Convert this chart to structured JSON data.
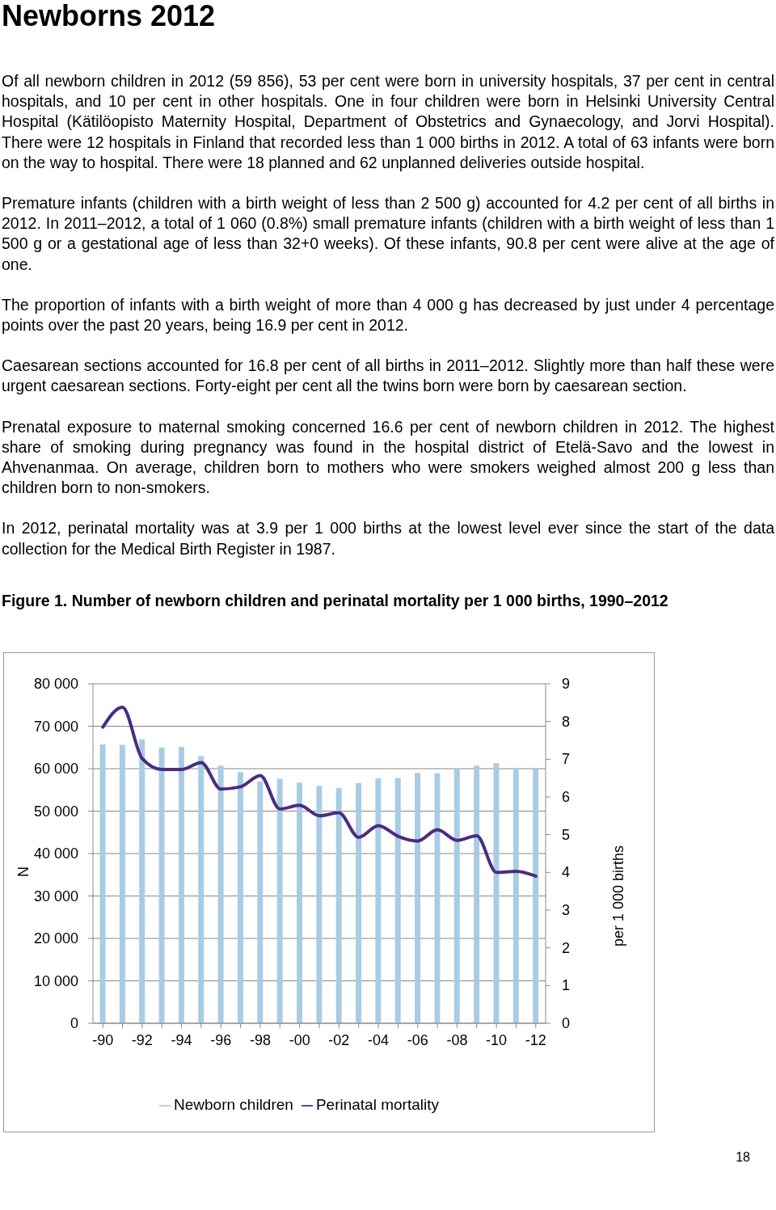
{
  "chart_data": {
    "type": "bar",
    "title": "Newborns 2012",
    "subtitle": "Figure 1. Number of newborn children and perinatal mortality per 1 000 births, 1990–2012",
    "annotations": [
      "Of all newborn children in 2012 (59 856), 53 per cent were born in university hospitals, 37 per cent in central hospitals, and 10 per cent in other hospitals. One in four children were born in Helsinki University Central Hospital (Kätilöopisto Maternity Hospital, Department of Obstetrics and Gynaecology, and Jorvi Hospital). There were 12 hospitals in Finland that recorded less than 1 000 births in 2012. A total of 63 infants were born on the way to hospital. There were 18 planned and 62 unplanned deliveries outside hospital.",
      "Premature infants (children with a birth weight of less than 2 500 g) accounted for 4.2 per cent of all births in 2012. In 2011–2012, a total of 1 060 (0.8%) small premature infants (children with a birth weight of less than 1 500 g or a gestational age of less than 32+0 weeks). Of these infants, 90.8 per cent were alive at the age of one.",
      "The proportion of infants with a birth weight of more than 4 000 g has decreased by just under 4 percentage points over the past 20 years, being 16.9 per cent in 2012.",
      "Caesarean sections accounted for 16.8 per cent of all births in 2011–2012. Slightly more than half these were urgent caesarean sections. Forty-eight per cent all the twins born were born by caesarean section.",
      "Prenatal exposure to maternal smoking concerned 16.6 per cent of newborn children in 2012. The highest share of smoking during pregnancy was found in the hospital district of Etelä-Savo and the lowest in Ahvenanmaa. On average, children born to mothers who were smokers weighed almost 200 g less than children born to non-smokers.",
      "In 2012, perinatal mortality was at 3.9 per 1 000 births at the lowest level ever since the start of the data collection for the Medical Birth Register in 1987.",
      "18"
    ],
    "ylabel": "N",
    "y2label": "per 1 000 births",
    "categories": [
      "-90",
      null,
      "-92",
      null,
      "-94",
      null,
      "-96",
      null,
      "-98",
      null,
      "-00",
      null,
      "-02",
      null,
      "-04",
      null,
      "-06",
      null,
      "-08",
      null,
      "-10",
      null,
      "-12"
    ],
    "series": [
      {
        "name": "Newborn children",
        "color": "#a9cce4",
        "values": [
          65700,
          65600,
          66900,
          65000,
          65100,
          63000,
          60700,
          59200,
          57000,
          57600,
          56700,
          55900,
          55500,
          56600,
          57700,
          57800,
          59000,
          58900,
          59800,
          60700,
          61300,
          60200,
          59900
        ]
      },
      {
        "name": "Perinatal mortality",
        "type": "line",
        "axis": "y2",
        "color": "#4b2c80",
        "values": [
          7.85,
          8.38,
          7.02,
          6.73,
          6.73,
          6.91,
          6.21,
          6.27,
          6.57,
          5.68,
          5.78,
          5.5,
          5.58,
          4.93,
          5.24,
          4.96,
          4.83,
          5.13,
          4.85,
          4.97,
          4.0,
          4.03,
          3.9
        ]
      }
    ],
    "ylim": [
      0,
      80000
    ],
    "yticks": [
      {
        "value": 0,
        "label": "0"
      },
      {
        "value": 10000,
        "label": "10 000"
      },
      {
        "value": 20000,
        "label": "20 000"
      },
      {
        "value": 30000,
        "label": "30 000"
      },
      {
        "value": 40000,
        "label": "40 000"
      },
      {
        "value": 50000,
        "label": "50 000"
      },
      {
        "value": 60000,
        "label": "60 000"
      },
      {
        "value": 70000,
        "label": "70 000"
      },
      {
        "value": 80000,
        "label": "80 000"
      }
    ],
    "y2lim": [
      0,
      9
    ],
    "y2ticks": [
      0,
      1,
      2,
      3,
      4,
      5,
      6,
      7,
      8,
      9
    ],
    "grid": "y",
    "legend": "bottom",
    "marker": "none",
    "line_style": "solid"
  }
}
